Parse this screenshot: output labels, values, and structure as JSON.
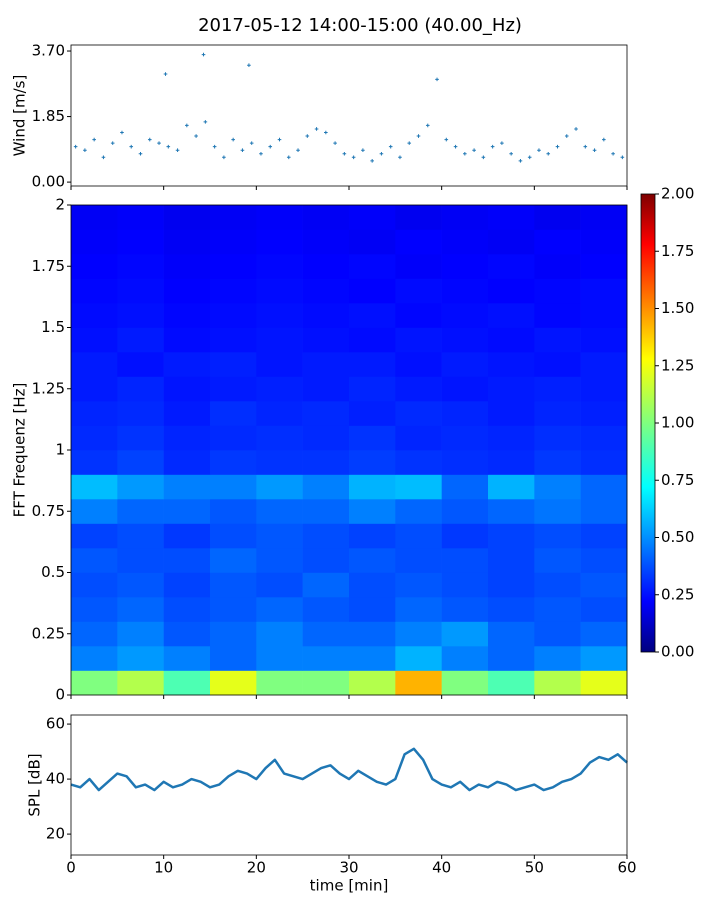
{
  "title": "2017-05-12 14:00-15:00 (40.00_Hz)",
  "chart_data": [
    {
      "type": "scatter",
      "ylabel": "Wind [m/s]",
      "color": "#1f77b4",
      "xlim": [
        0,
        60
      ],
      "ylim": [
        -0.11,
        3.87
      ],
      "xticks": [
        0,
        10,
        20,
        30,
        40,
        50,
        60
      ],
      "yticks": [
        {
          "value": 0,
          "label": "0.00"
        },
        {
          "value": 1.85,
          "label": "1.85"
        },
        {
          "value": 3.7,
          "label": "3.70"
        }
      ],
      "x": [
        0.5,
        1.5,
        2.5,
        3.5,
        4.5,
        5.5,
        6.5,
        7.5,
        8.5,
        9.5,
        10.2,
        10.5,
        11.5,
        12.5,
        13.5,
        14.3,
        14.5,
        15.5,
        16.5,
        17.5,
        18.5,
        19.2,
        19.5,
        20.5,
        21.5,
        22.5,
        23.5,
        24.5,
        25.5,
        26.5,
        27.5,
        28.5,
        29.5,
        30.5,
        31.5,
        32.5,
        33.5,
        34.5,
        35.5,
        36.5,
        37.5,
        38.5,
        39.5,
        40.5,
        41.5,
        42.5,
        43.5,
        44.5,
        45.5,
        46.5,
        47.5,
        48.5,
        49.5,
        50.5,
        51.5,
        52.5,
        53.5,
        54.5,
        55.5,
        56.5,
        57.5,
        58.5,
        59.5
      ],
      "values": [
        1.0,
        0.9,
        1.2,
        0.7,
        1.1,
        1.4,
        1.0,
        0.8,
        1.2,
        1.1,
        3.05,
        1.0,
        0.9,
        1.6,
        1.3,
        3.6,
        1.7,
        1.0,
        0.7,
        1.2,
        0.9,
        3.3,
        1.1,
        0.8,
        1.0,
        1.2,
        0.7,
        0.9,
        1.3,
        1.5,
        1.4,
        1.1,
        0.8,
        0.7,
        0.9,
        0.6,
        0.8,
        1.0,
        0.7,
        1.1,
        1.3,
        1.6,
        2.9,
        1.2,
        1.0,
        0.8,
        0.9,
        0.7,
        1.0,
        1.1,
        0.8,
        0.6,
        0.7,
        0.9,
        0.8,
        1.0,
        1.3,
        1.5,
        1.0,
        0.9,
        1.2,
        0.8,
        0.7
      ]
    },
    {
      "type": "heatmap",
      "ylabel": "FFT Frequenz [Hz]",
      "colormap": "jet",
      "xlim": [
        0,
        60
      ],
      "ylim": [
        0,
        2
      ],
      "xticks": [
        0,
        10,
        20,
        30,
        40,
        50,
        60
      ],
      "yticks": [
        0,
        0.25,
        0.5,
        0.75,
        1,
        1.25,
        1.5,
        1.75,
        2
      ],
      "clim": [
        0,
        2
      ],
      "cticks": [
        {
          "value": 0,
          "label": "0.00"
        },
        {
          "value": 0.25,
          "label": "0.25"
        },
        {
          "value": 0.5,
          "label": "0.50"
        },
        {
          "value": 0.75,
          "label": "0.75"
        },
        {
          "value": 1,
          "label": "1.00"
        },
        {
          "value": 1.25,
          "label": "1.25"
        },
        {
          "value": 1.5,
          "label": "1.50"
        },
        {
          "value": 1.75,
          "label": "1.75"
        },
        {
          "value": 2,
          "label": "2.00"
        }
      ],
      "z": [
        [
          1.0,
          1.1,
          0.9,
          1.2,
          1.0,
          1.0,
          1.1,
          1.4,
          1.0,
          0.9,
          1.1,
          1.2
        ],
        [
          0.5,
          0.55,
          0.5,
          0.45,
          0.5,
          0.5,
          0.5,
          0.6,
          0.5,
          0.45,
          0.5,
          0.55
        ],
        [
          0.45,
          0.5,
          0.42,
          0.45,
          0.5,
          0.45,
          0.45,
          0.5,
          0.55,
          0.45,
          0.42,
          0.45
        ],
        [
          0.42,
          0.45,
          0.4,
          0.42,
          0.45,
          0.42,
          0.4,
          0.45,
          0.42,
          0.4,
          0.42,
          0.4
        ],
        [
          0.4,
          0.42,
          0.38,
          0.42,
          0.4,
          0.45,
          0.4,
          0.42,
          0.4,
          0.38,
          0.4,
          0.42
        ],
        [
          0.42,
          0.4,
          0.4,
          0.45,
          0.42,
          0.4,
          0.42,
          0.4,
          0.4,
          0.38,
          0.42,
          0.4
        ],
        [
          0.38,
          0.4,
          0.36,
          0.4,
          0.42,
          0.4,
          0.38,
          0.4,
          0.36,
          0.38,
          0.4,
          0.38
        ],
        [
          0.5,
          0.45,
          0.45,
          0.42,
          0.45,
          0.45,
          0.5,
          0.45,
          0.42,
          0.45,
          0.48,
          0.45
        ],
        [
          0.62,
          0.55,
          0.5,
          0.5,
          0.55,
          0.5,
          0.6,
          0.62,
          0.45,
          0.6,
          0.5,
          0.45
        ],
        [
          0.35,
          0.38,
          0.33,
          0.36,
          0.35,
          0.35,
          0.37,
          0.35,
          0.34,
          0.33,
          0.36,
          0.34
        ],
        [
          0.33,
          0.35,
          0.32,
          0.33,
          0.34,
          0.33,
          0.35,
          0.32,
          0.33,
          0.32,
          0.34,
          0.33
        ],
        [
          0.32,
          0.33,
          0.3,
          0.34,
          0.32,
          0.33,
          0.31,
          0.33,
          0.32,
          0.3,
          0.32,
          0.31
        ],
        [
          0.3,
          0.32,
          0.29,
          0.3,
          0.31,
          0.3,
          0.32,
          0.3,
          0.29,
          0.3,
          0.31,
          0.3
        ],
        [
          0.3,
          0.28,
          0.3,
          0.31,
          0.29,
          0.3,
          0.3,
          0.28,
          0.3,
          0.29,
          0.28,
          0.3
        ],
        [
          0.28,
          0.3,
          0.27,
          0.28,
          0.29,
          0.28,
          0.27,
          0.29,
          0.28,
          0.27,
          0.29,
          0.28
        ],
        [
          0.27,
          0.28,
          0.26,
          0.27,
          0.28,
          0.27,
          0.28,
          0.26,
          0.27,
          0.28,
          0.26,
          0.27
        ],
        [
          0.26,
          0.27,
          0.25,
          0.26,
          0.27,
          0.26,
          0.25,
          0.27,
          0.26,
          0.25,
          0.26,
          0.27
        ],
        [
          0.25,
          0.26,
          0.24,
          0.25,
          0.26,
          0.25,
          0.26,
          0.24,
          0.25,
          0.26,
          0.24,
          0.25
        ],
        [
          0.24,
          0.25,
          0.23,
          0.24,
          0.25,
          0.24,
          0.23,
          0.25,
          0.24,
          0.23,
          0.25,
          0.24
        ],
        [
          0.23,
          0.24,
          0.22,
          0.23,
          0.24,
          0.23,
          0.24,
          0.22,
          0.23,
          0.24,
          0.22,
          0.23
        ]
      ]
    },
    {
      "type": "line",
      "ylabel": "SPL [dB]",
      "xlabel": "time [min]",
      "color": "#1f77b4",
      "xlim": [
        0,
        60
      ],
      "ylim": [
        12.4,
        63.3
      ],
      "xticks": [
        0,
        10,
        20,
        30,
        40,
        50,
        60
      ],
      "yticks": [
        20,
        40,
        60
      ],
      "x": [
        0,
        1,
        2,
        3,
        4,
        5,
        6,
        7,
        8,
        9,
        10,
        11,
        12,
        13,
        14,
        15,
        16,
        17,
        18,
        19,
        20,
        21,
        22,
        23,
        24,
        25,
        26,
        27,
        28,
        29,
        30,
        31,
        32,
        33,
        34,
        35,
        36,
        37,
        38,
        39,
        40,
        41,
        42,
        43,
        44,
        45,
        46,
        47,
        48,
        49,
        50,
        51,
        52,
        53,
        54,
        55,
        56,
        57,
        58,
        59,
        60
      ],
      "values": [
        38,
        37,
        40,
        36,
        39,
        42,
        41,
        37,
        38,
        36,
        39,
        37,
        38,
        40,
        39,
        37,
        38,
        41,
        43,
        42,
        40,
        44,
        47,
        42,
        41,
        40,
        42,
        44,
        45,
        42,
        40,
        43,
        41,
        39,
        38,
        40,
        49,
        51,
        47,
        40,
        38,
        37,
        39,
        36,
        38,
        37,
        39,
        38,
        36,
        37,
        38,
        36,
        37,
        39,
        40,
        42,
        46,
        48,
        47,
        49,
        46
      ]
    }
  ]
}
